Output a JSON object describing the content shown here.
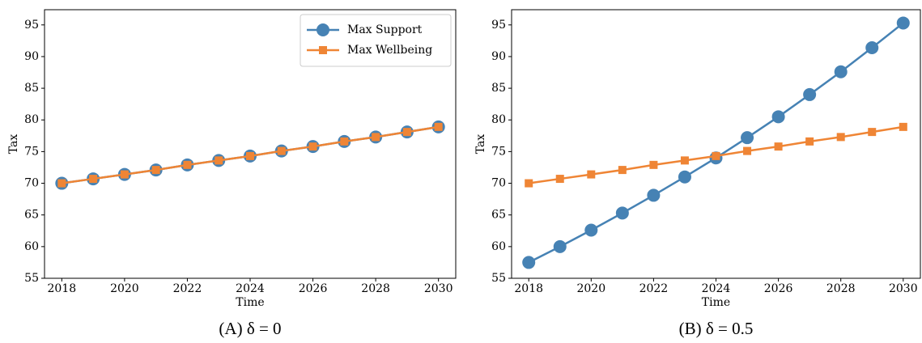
{
  "chart_data": [
    {
      "type": "line",
      "caption": "(A) δ = 0",
      "xlabel": "Time",
      "ylabel": "Tax",
      "x": [
        2018,
        2019,
        2020,
        2021,
        2022,
        2023,
        2024,
        2025,
        2026,
        2027,
        2028,
        2029,
        2030
      ],
      "series": [
        {
          "name": "Max Support",
          "color": "#4682b4",
          "marker": "circle",
          "values": [
            70.0,
            70.7,
            71.4,
            72.1,
            72.9,
            73.6,
            74.3,
            75.1,
            75.8,
            76.6,
            77.3,
            78.1,
            78.9
          ]
        },
        {
          "name": "Max Wellbeing",
          "color": "#ef8535",
          "marker": "square",
          "values": [
            70.0,
            70.7,
            71.4,
            72.1,
            72.9,
            73.6,
            74.3,
            75.1,
            75.8,
            76.6,
            77.3,
            78.1,
            78.9
          ]
        }
      ],
      "xlim": [
        2017.45,
        2030.55
      ],
      "xticks": [
        2018,
        2020,
        2022,
        2024,
        2026,
        2028,
        2030
      ],
      "ylim": [
        55,
        97.4
      ],
      "yticks": [
        55,
        60,
        65,
        70,
        75,
        80,
        85,
        90,
        95
      ],
      "legend": "upper right"
    },
    {
      "type": "line",
      "caption": "(B) δ = 0.5",
      "xlabel": "Time",
      "ylabel": "Tax",
      "x": [
        2018,
        2019,
        2020,
        2021,
        2022,
        2023,
        2024,
        2025,
        2026,
        2027,
        2028,
        2029,
        2030
      ],
      "series": [
        {
          "color": "#4682b4",
          "marker": "circle",
          "values": [
            57.5,
            60.0,
            62.6,
            65.3,
            68.1,
            71.0,
            74.0,
            77.2,
            80.5,
            84.0,
            87.6,
            91.4,
            95.3
          ]
        },
        {
          "color": "#ef8535",
          "marker": "square",
          "values": [
            70.0,
            70.7,
            71.4,
            72.1,
            72.9,
            73.6,
            74.3,
            75.1,
            75.8,
            76.6,
            77.3,
            78.1,
            78.9
          ]
        }
      ],
      "xlim": [
        2017.45,
        2030.55
      ],
      "xticks": [
        2018,
        2020,
        2022,
        2024,
        2026,
        2028,
        2030
      ],
      "ylim": [
        55,
        97.4
      ],
      "yticks": [
        55,
        60,
        65,
        70,
        75,
        80,
        85,
        90,
        95
      ]
    }
  ]
}
